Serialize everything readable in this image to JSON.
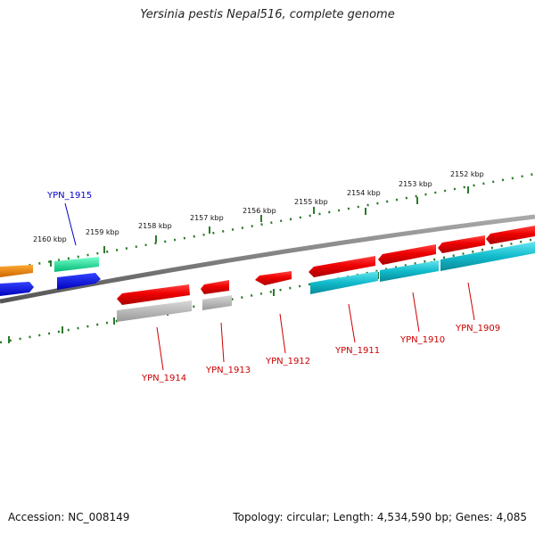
{
  "title": "Yersinia pestis Nepal516, complete genome",
  "footer": {
    "accession": "Accession: NC_008149",
    "topology": "Topology: circular; Length: 4,534,590 bp; Genes: 4,085"
  },
  "ticks": [
    "2160 kbp",
    "2159 kbp",
    "2158 kbp",
    "2157 kbp",
    "2156 kbp",
    "2155 kbp",
    "2154 kbp",
    "2153 kbp",
    "2152 kbp"
  ],
  "genes": [
    {
      "label": "YPN_1915",
      "color": "#0000cc"
    },
    {
      "label": "YPN_1914",
      "color": "#cc0000"
    },
    {
      "label": "YPN_1913",
      "color": "#cc0000"
    },
    {
      "label": "YPN_1912",
      "color": "#cc0000"
    },
    {
      "label": "YPN_1911",
      "color": "#cc0000"
    },
    {
      "label": "YPN_1910",
      "color": "#cc0000"
    },
    {
      "label": "YPN_1909",
      "color": "#cc0000"
    }
  ],
  "colors": {
    "backbone": "#808080",
    "tick": "#2a7a2a",
    "cds_forward": "#ee0000",
    "cds_reverse": "#0000ee",
    "rna": "#00cc88",
    "orange": "#ee8800",
    "teal": "#11bbcc",
    "gray": "#aaaaaa"
  }
}
